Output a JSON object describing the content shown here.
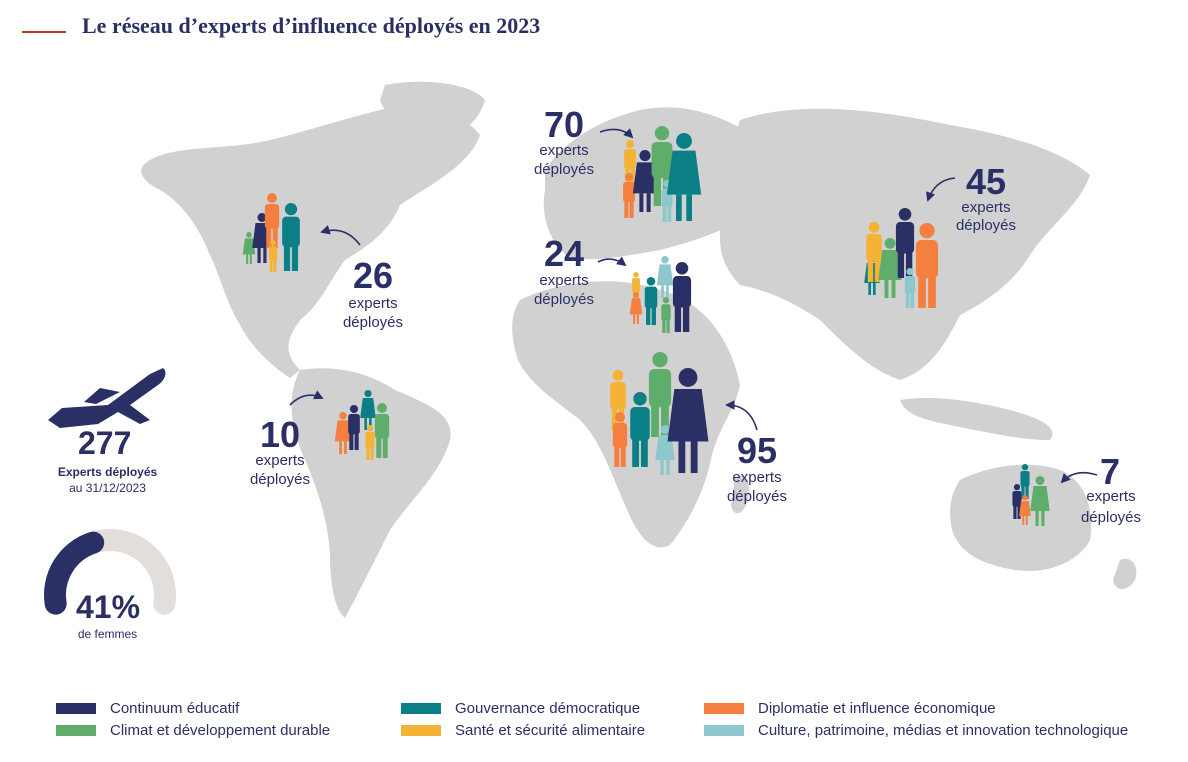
{
  "title": "Le réseau d’experts d’influence déployés en 2023",
  "colors": {
    "continuum": "#2a2f66",
    "climat": "#5fad6b",
    "gouvernance": "#0a7f85",
    "sante": "#f5b335",
    "diplomatie": "#f47f3f",
    "culture": "#8ec8cc",
    "land": "#d1d1d1",
    "title_rule": "#c0392b"
  },
  "regions": [
    {
      "id": "north-america",
      "count": "26",
      "label_1": "experts",
      "label_2": "déployés"
    },
    {
      "id": "south-america",
      "count": "10",
      "label_1": "experts",
      "label_2": "déployés"
    },
    {
      "id": "north-europe",
      "count": "70",
      "label_1": "experts",
      "label_2": "déployés"
    },
    {
      "id": "mediterranean",
      "count": "24",
      "label_1": "experts",
      "label_2": "déployés"
    },
    {
      "id": "africa",
      "count": "95",
      "label_1": "experts",
      "label_2": "déployés"
    },
    {
      "id": "asia",
      "count": "45",
      "label_1": "experts",
      "label_2": "déployés"
    },
    {
      "id": "oceania",
      "count": "7",
      "label_1": "experts",
      "label_2": "déployés"
    }
  ],
  "total": {
    "count": "277",
    "label": "Experts déployés",
    "date": "au 31/12/2023"
  },
  "women": {
    "percent_label": "41%",
    "label": "de femmes",
    "fraction": 0.41
  },
  "legend": [
    {
      "label": "Continuum éducatif",
      "color": "#2a2f66"
    },
    {
      "label": "Gouvernance démocratique",
      "color": "#0a7f85"
    },
    {
      "label": "Diplomatie et influence économique",
      "color": "#f47f3f"
    },
    {
      "label": "Climat et développement durable",
      "color": "#5fad6b"
    },
    {
      "label": "Santé et sécurité alimentaire",
      "color": "#f5b335"
    },
    {
      "label": "Culture, patrimoine, médias et innovation technologique",
      "color": "#8ec8cc"
    }
  ]
}
